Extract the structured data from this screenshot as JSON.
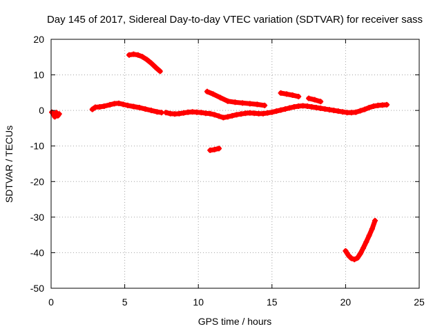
{
  "chart_data": {
    "type": "scatter",
    "title": "Day 145 of 2017, Sidereal Day-to-day VTEC variation (SDTVAR) for receiver sass",
    "xlabel": "GPS time / hours",
    "ylabel": "SDTVAR / TECUs",
    "xlim": [
      0,
      25
    ],
    "ylim": [
      -50,
      20
    ],
    "xticks": [
      0,
      5,
      10,
      15,
      20,
      25
    ],
    "yticks": [
      -50,
      -40,
      -30,
      -20,
      -10,
      0,
      10,
      20
    ],
    "grid": true,
    "marker": "plus",
    "color": "#ff0000",
    "series": [
      {
        "name": "segment-1",
        "x": [
          0.05,
          0.15,
          0.25,
          0.35,
          0.45,
          0.55
        ],
        "y": [
          -0.5,
          -1.0,
          -1.8,
          -0.6,
          -1.5,
          -1.0
        ]
      },
      {
        "name": "segment-2",
        "x": [
          2.8,
          3.0,
          3.3,
          3.6,
          4.0,
          4.3,
          4.6,
          4.9,
          5.2,
          5.6,
          6.0,
          6.4,
          6.8,
          7.2,
          7.5
        ],
        "y": [
          0.3,
          0.9,
          1.0,
          1.2,
          1.6,
          1.9,
          2.0,
          1.7,
          1.4,
          1.1,
          0.8,
          0.4,
          0.0,
          -0.4,
          -0.6
        ]
      },
      {
        "name": "segment-3",
        "x": [
          7.8,
          8.1,
          8.4,
          8.7,
          9.0,
          9.3,
          9.6,
          9.9,
          10.2,
          10.5,
          10.8,
          11.1,
          11.4,
          11.7,
          12.0,
          12.3,
          12.6,
          12.9,
          13.2,
          13.5,
          13.8,
          14.1,
          14.4,
          14.7,
          15.0,
          15.3,
          15.6,
          15.9,
          16.2,
          16.5,
          16.8,
          17.1,
          17.4,
          17.7,
          18.0,
          18.3,
          18.6,
          18.9,
          19.2,
          19.5,
          19.8,
          20.1,
          20.4,
          20.7,
          21.0,
          21.3,
          21.6,
          21.9,
          22.2,
          22.5,
          22.8
        ],
        "y": [
          -0.6,
          -0.9,
          -1.0,
          -0.9,
          -0.7,
          -0.5,
          -0.4,
          -0.5,
          -0.6,
          -0.8,
          -0.9,
          -1.2,
          -1.6,
          -2.0,
          -1.8,
          -1.5,
          -1.2,
          -1.0,
          -0.8,
          -0.7,
          -0.8,
          -0.9,
          -0.9,
          -0.7,
          -0.5,
          -0.2,
          0.1,
          0.4,
          0.7,
          1.0,
          1.2,
          1.3,
          1.2,
          1.0,
          0.8,
          0.6,
          0.4,
          0.2,
          0.0,
          -0.2,
          -0.4,
          -0.6,
          -0.6,
          -0.5,
          -0.1,
          0.3,
          0.8,
          1.2,
          1.4,
          1.5,
          1.6
        ]
      },
      {
        "name": "segment-4",
        "x": [
          5.3,
          5.6,
          5.9,
          6.2,
          6.5,
          6.8,
          7.1,
          7.4
        ],
        "y": [
          15.6,
          15.8,
          15.6,
          15.1,
          14.3,
          13.3,
          12.1,
          11.0
        ]
      },
      {
        "name": "segment-5",
        "x": [
          10.6,
          11.0,
          11.5,
          12.0,
          12.5,
          13.0,
          13.5,
          14.0,
          14.5
        ],
        "y": [
          5.3,
          4.6,
          3.6,
          2.6,
          2.3,
          2.1,
          1.9,
          1.7,
          1.4
        ]
      },
      {
        "name": "segment-6",
        "x": [
          15.6,
          16.0,
          16.4,
          16.8
        ],
        "y": [
          4.9,
          4.6,
          4.3,
          3.9
        ]
      },
      {
        "name": "segment-7",
        "x": [
          17.5,
          17.9,
          18.3
        ],
        "y": [
          3.4,
          3.0,
          2.5
        ]
      },
      {
        "name": "segment-8",
        "x": [
          10.8,
          11.1,
          11.4
        ],
        "y": [
          -11.2,
          -11.0,
          -10.7
        ]
      },
      {
        "name": "segment-9",
        "x": [
          20.0,
          20.2,
          20.4,
          20.6,
          20.8,
          21.0,
          21.2,
          21.4,
          21.6,
          21.8,
          22.0
        ],
        "y": [
          -39.5,
          -40.8,
          -41.6,
          -41.9,
          -41.5,
          -40.3,
          -38.7,
          -37.0,
          -35.2,
          -33.3,
          -31.0
        ]
      }
    ]
  }
}
